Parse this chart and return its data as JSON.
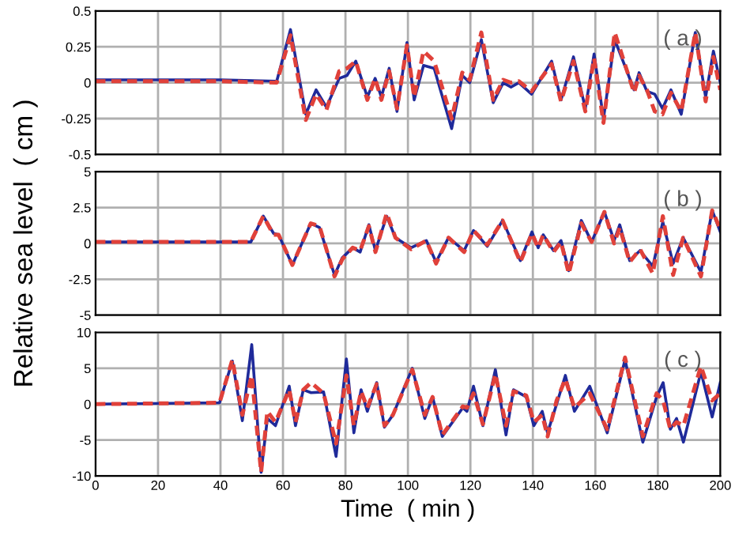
{
  "chart_data": [
    {
      "type": "line",
      "annotations": [
        "( a )"
      ],
      "xlim": [
        0,
        200
      ],
      "xticks": [
        0,
        20,
        40,
        60,
        80,
        100,
        120,
        140,
        160,
        180,
        200
      ],
      "ylim": [
        -0.5,
        0.5
      ],
      "yticks": [
        -0.5,
        -0.25,
        0,
        0.25,
        0.5
      ],
      "grid": true,
      "tick_labels": "y",
      "marker": "none",
      "x": [
        0,
        40,
        58,
        62.4,
        67.3,
        70.6,
        73.9,
        78,
        80.5,
        83.3,
        87,
        89.5,
        91.5,
        94,
        96.5,
        99.7,
        102,
        105,
        108.4,
        114,
        117.4,
        119.8,
        123.5,
        127.3,
        130.5,
        133,
        135.5,
        139.6,
        146,
        149,
        153,
        156.8,
        159.6,
        162.6,
        166.2,
        172.4,
        174,
        176.5,
        179,
        181.5,
        184.2,
        187.5,
        192,
        195.3,
        197.8,
        200
      ],
      "series": [
        {
          "color": "#1f2a9a",
          "line_style": "solid",
          "values": [
            0.02,
            0.02,
            0.01,
            0.37,
            -0.22,
            -0.05,
            -0.17,
            0.03,
            0.05,
            0.15,
            -0.1,
            0.03,
            -0.1,
            0.1,
            -0.2,
            0.28,
            -0.12,
            0.12,
            0.1,
            -0.32,
            0.05,
            0,
            0.3,
            -0.14,
            0,
            -0.03,
            0,
            -0.08,
            0.15,
            -0.12,
            0.18,
            -0.18,
            0.2,
            -0.25,
            0.3,
            -0.05,
            0.07,
            -0.06,
            -0.08,
            -0.18,
            -0.05,
            -0.22,
            0.35,
            -0.1,
            0.22,
            0
          ]
        },
        {
          "color": "#e0413a",
          "line_style": "dashed",
          "values": [
            0.01,
            0.01,
            0,
            0.33,
            -0.26,
            -0.08,
            -0.19,
            0.08,
            0.1,
            0.15,
            -0.12,
            0.03,
            -0.12,
            0.08,
            -0.18,
            0.26,
            -0.1,
            0.22,
            0.15,
            -0.25,
            0.07,
            0.02,
            0.35,
            -0.12,
            0.02,
            0,
            0.01,
            -0.06,
            0.13,
            -0.13,
            0.15,
            -0.2,
            0.17,
            -0.28,
            0.35,
            -0.07,
            0.05,
            -0.05,
            -0.2,
            -0.22,
            -0.07,
            -0.2,
            0.35,
            -0.13,
            0.18,
            -0.05
          ]
        }
      ]
    },
    {
      "type": "line",
      "annotations": [
        "( b )"
      ],
      "ylabel": "Relative sea level  ( cm )",
      "xlim": [
        0,
        200
      ],
      "xticks": [
        0,
        20,
        40,
        60,
        80,
        100,
        120,
        140,
        160,
        180,
        200
      ],
      "ylim": [
        -5,
        5
      ],
      "yticks": [
        -5,
        -2.5,
        0,
        2.5,
        5
      ],
      "grid": true,
      "tick_labels": "y",
      "marker": "none",
      "x": [
        0,
        49.7,
        53.7,
        57,
        58.6,
        63,
        68.9,
        71.7,
        76.5,
        79,
        82.3,
        84.7,
        87.5,
        89.6,
        93.2,
        96,
        101,
        105.9,
        109,
        113,
        118,
        121,
        125.4,
        130.3,
        136,
        139.7,
        141.7,
        143.3,
        146.6,
        149,
        151.5,
        155.5,
        158.8,
        162.9,
        166,
        167.8,
        171,
        174.3,
        178.4,
        181.6,
        184.9,
        188.1,
        193.8,
        197.4,
        200
      ],
      "series": [
        {
          "color": "#1f2a9a",
          "line_style": "solid",
          "values": [
            0.1,
            0.1,
            1.9,
            0.7,
            0.6,
            -1.5,
            1.4,
            1.1,
            -2.2,
            -1,
            -0.3,
            -0.6,
            1.3,
            -0.5,
            1.9,
            0.4,
            -0.3,
            0.2,
            -1.3,
            0.4,
            -0.5,
            0.9,
            -0.2,
            1.6,
            -1.2,
            0.8,
            -0.3,
            0.6,
            -0.5,
            0.2,
            -1.9,
            1.6,
            0.1,
            2.2,
            0.2,
            1.3,
            -1.2,
            -0.5,
            -1.6,
            1.5,
            -1.4,
            0.4,
            -2,
            2.3,
            0.8
          ]
        },
        {
          "color": "#e0413a",
          "line_style": "dashed",
          "values": [
            0.1,
            0.1,
            1.9,
            0.6,
            0.6,
            -1.5,
            1.4,
            1.2,
            -2.3,
            -1.1,
            -0.3,
            -0.5,
            1.2,
            -0.6,
            2.1,
            0.4,
            -0.4,
            0.2,
            -1.4,
            0.4,
            -0.6,
            0.9,
            -0.1,
            1.6,
            -1.3,
            0.7,
            -0.3,
            0.6,
            -0.6,
            0.1,
            -2.1,
            1.4,
            0.1,
            2.2,
            0,
            1.1,
            -1.3,
            -0.4,
            -2.1,
            1.9,
            -2.2,
            0.4,
            -2.3,
            2.3,
            1.0
          ]
        }
      ]
    },
    {
      "type": "line",
      "annotations": [
        "( c )"
      ],
      "xlabel": "Time  ( min )",
      "xlim": [
        0,
        200
      ],
      "xticks": [
        0,
        20,
        40,
        60,
        80,
        100,
        120,
        140,
        160,
        180,
        200
      ],
      "ylim": [
        -10,
        10
      ],
      "yticks": [
        -10,
        -5,
        0,
        5,
        10
      ],
      "grid": true,
      "marker": "none",
      "x": [
        0,
        39.7,
        43.8,
        47,
        50,
        53,
        55,
        57.6,
        62,
        64,
        66.5,
        69,
        73,
        77,
        80.3,
        82.7,
        85,
        87,
        90,
        92.5,
        95.2,
        101.4,
        105.4,
        107.9,
        111,
        117.6,
        118.9,
        121,
        124,
        128,
        131.4,
        133.8,
        137.9,
        140.3,
        143,
        144.7,
        147.6,
        150.4,
        153.3,
        158.2,
        163.8,
        169.5,
        175.2,
        179.6,
        181.7,
        184,
        186,
        188.2,
        193.8,
        197.4,
        200
      ],
      "series": [
        {
          "color": "#1f2a9a",
          "line_style": "solid",
          "values": [
            0,
            0.2,
            6,
            -2.3,
            8.3,
            -9.5,
            -2,
            -3,
            2.5,
            -3,
            2,
            1.6,
            1.7,
            -7.3,
            6.3,
            -4,
            2,
            -1,
            3,
            -3.2,
            -1.5,
            5,
            -2,
            1,
            -4.5,
            -0.5,
            -1,
            2.5,
            -3,
            4.8,
            -4.3,
            2,
            1,
            -3,
            -1,
            -4,
            0,
            4,
            -1,
            2.5,
            -4,
            6.2,
            -5.3,
            1,
            3,
            -3.5,
            -2,
            -5.3,
            4.5,
            -1.8,
            3
          ]
        },
        {
          "color": "#e0413a",
          "line_style": "dashed",
          "values": [
            0,
            0.2,
            6.2,
            -1.5,
            4,
            -9.5,
            -1,
            -2.5,
            2,
            -2.5,
            2,
            3,
            1.5,
            -5.5,
            4,
            -3,
            1.8,
            -0.5,
            2.8,
            -3,
            -1.5,
            4.8,
            -1.5,
            1,
            -4.3,
            -0.3,
            -0.5,
            1.5,
            -2.8,
            4.2,
            -3,
            1.8,
            1.2,
            -2.5,
            -1.5,
            -4.5,
            0.5,
            3.5,
            -0.5,
            1.5,
            -3.5,
            6.5,
            -4.5,
            1.5,
            0.5,
            -3.5,
            -2.5,
            -3,
            5.3,
            0.5,
            1.5
          ]
        }
      ]
    }
  ]
}
